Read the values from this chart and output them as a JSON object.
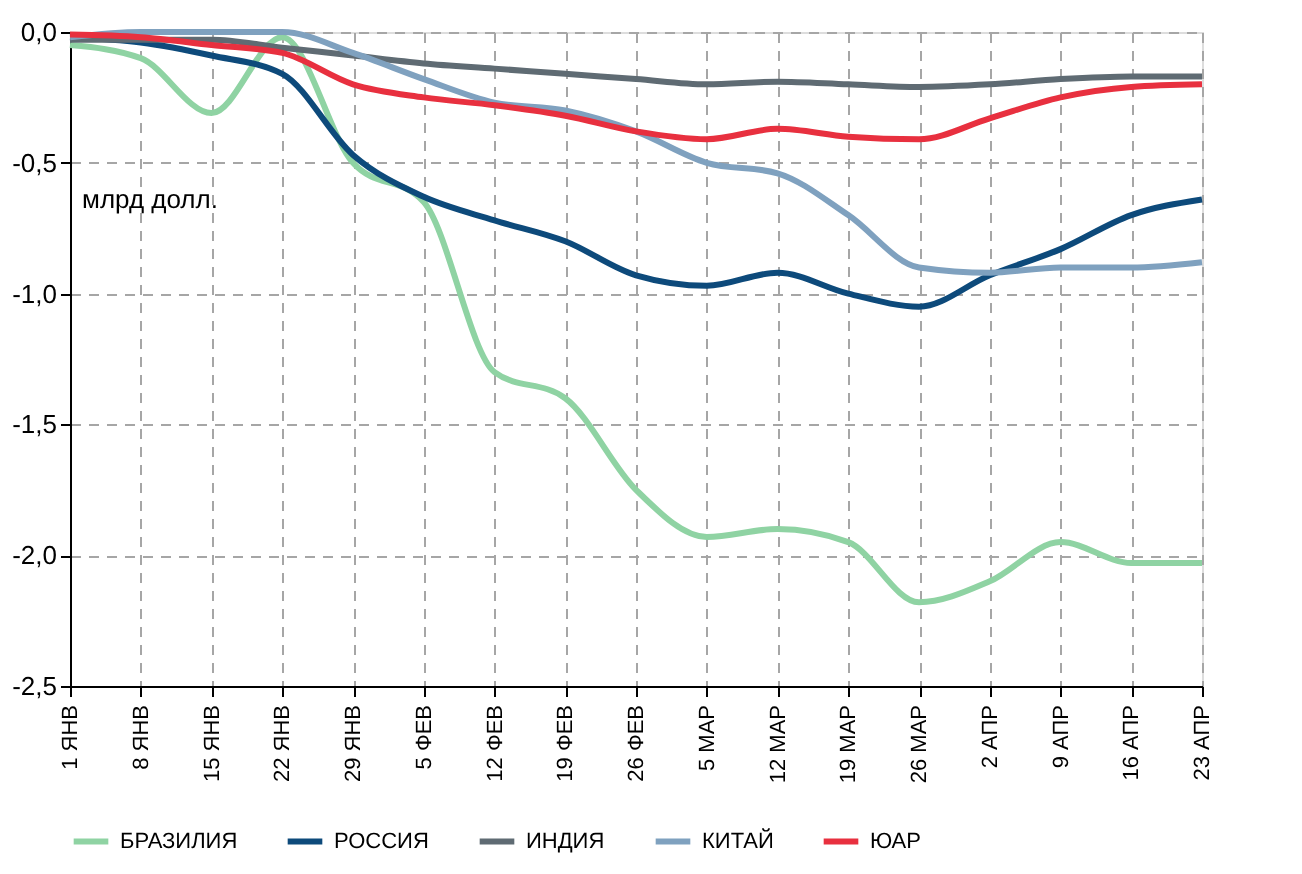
{
  "chart_data": {
    "type": "line",
    "categories": [
      "1 ЯНВ",
      "8 ЯНВ",
      "15 ЯНВ",
      "22 ЯНВ",
      "29 ЯНВ",
      "5 ФЕВ",
      "12 ФЕВ",
      "19 ФЕВ",
      "26 ФЕВ",
      "5 МАР",
      "12 МАР",
      "19 МАР",
      "26 МАР",
      "2 АПР",
      "9 АПР",
      "16 АПР",
      "23 АПР"
    ],
    "series": [
      {
        "name": "БРАЗИЛИЯ",
        "color": "#8fd3a3",
        "values": [
          -0.05,
          -0.1,
          -0.31,
          -0.02,
          -0.5,
          -0.65,
          -1.3,
          -1.4,
          -1.75,
          -1.93,
          -1.9,
          -1.95,
          -2.18,
          -2.1,
          -1.95,
          -2.03,
          -2.03
        ]
      },
      {
        "name": "РОССИЯ",
        "color": "#0d4a7b",
        "values": [
          -0.02,
          -0.04,
          -0.09,
          -0.16,
          -0.47,
          -0.63,
          -0.72,
          -0.8,
          -0.93,
          -0.97,
          -0.92,
          -1.0,
          -1.05,
          -0.93,
          -0.83,
          -0.7,
          -0.64
        ]
      },
      {
        "name": "ИНДИЯ",
        "color": "#5f6b73",
        "values": [
          -0.03,
          -0.03,
          -0.03,
          -0.06,
          -0.09,
          -0.12,
          -0.14,
          -0.16,
          -0.18,
          -0.2,
          -0.19,
          -0.2,
          -0.21,
          -0.2,
          -0.18,
          -0.17,
          -0.17
        ]
      },
      {
        "name": "КИТАЙ",
        "color": "#7fa1bf",
        "values": [
          -0.02,
          0.0,
          0.0,
          0.0,
          -0.08,
          -0.18,
          -0.27,
          -0.3,
          -0.38,
          -0.5,
          -0.54,
          -0.7,
          -0.9,
          -0.92,
          -0.9,
          -0.9,
          -0.88
        ]
      },
      {
        "name": "ЮАР",
        "color": "#e8303f",
        "values": [
          -0.01,
          -0.02,
          -0.05,
          -0.08,
          -0.2,
          -0.25,
          -0.28,
          -0.32,
          -0.38,
          -0.41,
          -0.37,
          -0.4,
          -0.41,
          -0.33,
          -0.25,
          -0.21,
          -0.2
        ]
      }
    ],
    "ylim": [
      -2.5,
      0
    ],
    "yticks": [
      {
        "value": -2.5,
        "label": "-2,5"
      },
      {
        "value": -2.0,
        "label": "-2,0"
      },
      {
        "value": -1.5,
        "label": "-1,5"
      },
      {
        "value": -1.0,
        "label": "-1,0"
      },
      {
        "value": -0.5,
        "label": "-0,5"
      },
      {
        "value": 0,
        "label": "0,0"
      }
    ],
    "annotations": [
      "млрд долл."
    ],
    "grid": true,
    "legend": "bottom",
    "line_style": "solid",
    "marker": "none"
  }
}
